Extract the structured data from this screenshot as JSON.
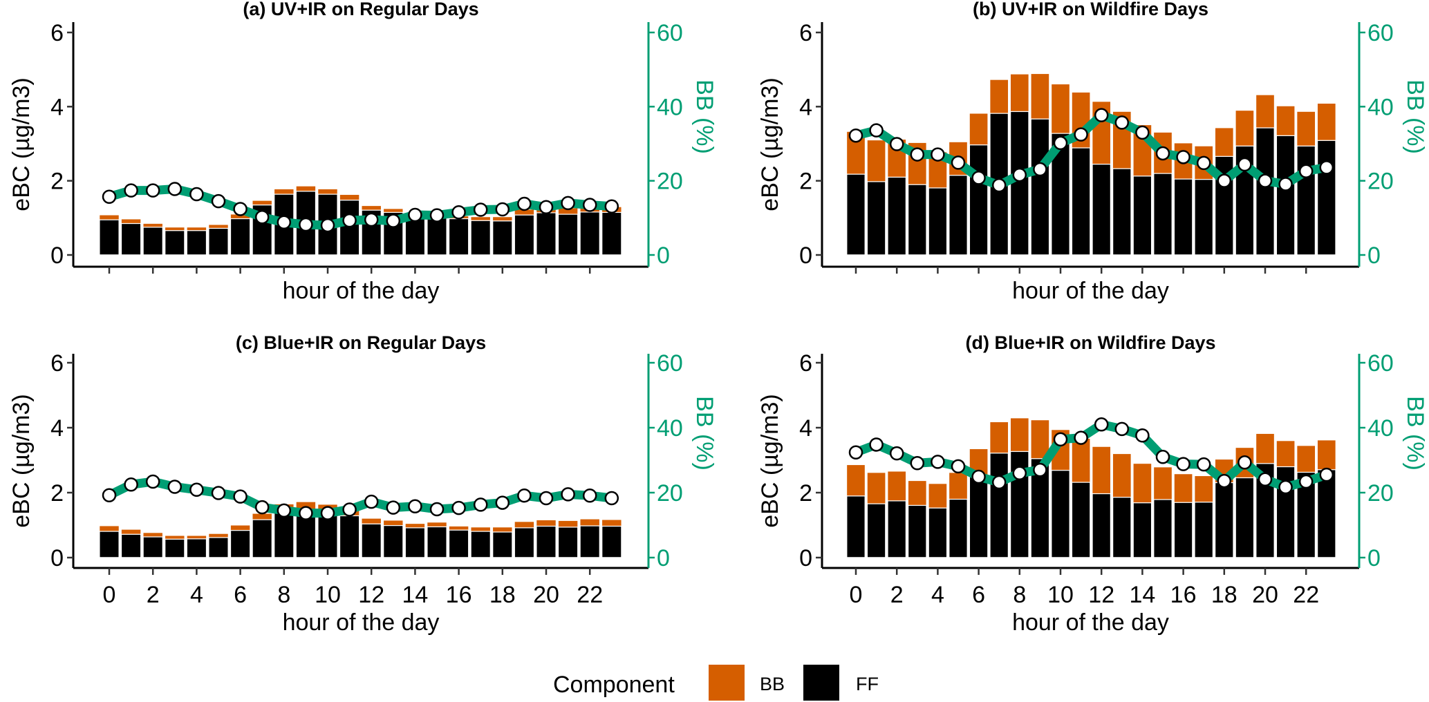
{
  "colors": {
    "BB": "#D55E00",
    "FF": "#000000",
    "line": "#009E73",
    "point_fill": "#ffffff"
  },
  "legend": {
    "title": "Component",
    "items": [
      {
        "key": "BB",
        "label": "BB"
      },
      {
        "key": "FF",
        "label": "FF"
      }
    ],
    "position": "bottom"
  },
  "chart_data": [
    {
      "type": "bar",
      "stacked": true,
      "title": "(a) UV+IR on Regular Days",
      "xlabel": "hour of the day",
      "ylabel": "eBC (µg/m3)",
      "ylabel_right": "BB (%)",
      "ylim": [
        0,
        6
      ],
      "yticks": [
        0,
        2,
        4,
        6
      ],
      "ylim_right": [
        0,
        60
      ],
      "yticks_right": [
        0,
        20,
        40,
        60
      ],
      "x": [
        0,
        1,
        2,
        3,
        4,
        5,
        6,
        7,
        8,
        9,
        10,
        11,
        12,
        13,
        14,
        15,
        16,
        17,
        18,
        19,
        20,
        21,
        22,
        23
      ],
      "xticks": [
        0,
        2,
        4,
        6,
        8,
        10,
        12,
        14,
        16,
        18,
        20,
        22
      ],
      "show_xtick_labels": false,
      "series": [
        {
          "name": "FF",
          "type": "bar",
          "values": [
            0.95,
            0.85,
            0.75,
            0.66,
            0.66,
            0.72,
            0.98,
            1.35,
            1.64,
            1.72,
            1.64,
            1.48,
            1.21,
            1.15,
            1.04,
            1.04,
            0.98,
            0.93,
            0.92,
            1.08,
            1.14,
            1.1,
            1.16,
            1.15
          ]
        },
        {
          "name": "BB",
          "type": "bar",
          "values": [
            0.13,
            0.12,
            0.1,
            0.09,
            0.09,
            0.1,
            0.12,
            0.12,
            0.14,
            0.14,
            0.14,
            0.15,
            0.12,
            0.1,
            0.08,
            0.06,
            0.07,
            0.1,
            0.11,
            0.15,
            0.11,
            0.17,
            0.11,
            0.15
          ]
        },
        {
          "name": "BB (%)",
          "type": "line",
          "axis": "right",
          "values": [
            15.7,
            17.4,
            17.4,
            17.8,
            16.4,
            14.5,
            12.4,
            10.2,
            8.8,
            8.2,
            8.0,
            9.3,
            9.5,
            9.2,
            10.8,
            10.7,
            11.5,
            12.2,
            12.3,
            13.8,
            12.9,
            14.0,
            13.5,
            13.1
          ]
        }
      ]
    },
    {
      "type": "bar",
      "stacked": true,
      "title": "(b) UV+IR on Wildfire Days",
      "xlabel": "hour of the day",
      "ylabel": "eBC (µg/m3)",
      "ylabel_right": "BB (%)",
      "ylim": [
        0,
        6
      ],
      "yticks": [
        0,
        2,
        4,
        6
      ],
      "ylim_right": [
        0,
        60
      ],
      "yticks_right": [
        0,
        20,
        40,
        60
      ],
      "x": [
        0,
        1,
        2,
        3,
        4,
        5,
        6,
        7,
        8,
        9,
        10,
        11,
        12,
        13,
        14,
        15,
        16,
        17,
        18,
        19,
        20,
        21,
        22,
        23
      ],
      "xticks": [
        0,
        2,
        4,
        6,
        8,
        10,
        12,
        14,
        16,
        18,
        20,
        22
      ],
      "show_xtick_labels": false,
      "series": [
        {
          "name": "FF",
          "type": "bar",
          "values": [
            2.18,
            1.98,
            2.1,
            1.9,
            1.81,
            2.15,
            2.97,
            3.82,
            3.87,
            3.67,
            3.28,
            2.89,
            2.45,
            2.33,
            2.13,
            2.2,
            2.05,
            2.04,
            2.66,
            2.94,
            3.43,
            3.22,
            2.94,
            3.09
          ]
        },
        {
          "name": "BB",
          "type": "bar",
          "values": [
            1.15,
            1.12,
            1.02,
            1.13,
            0.97,
            0.9,
            0.85,
            0.91,
            1.01,
            1.22,
            1.33,
            1.5,
            1.69,
            1.54,
            1.38,
            1.11,
            0.97,
            0.9,
            0.77,
            0.96,
            0.89,
            0.8,
            0.93,
            1.0
          ]
        },
        {
          "name": "BB (%)",
          "type": "line",
          "axis": "right",
          "values": [
            32.2,
            33.6,
            29.9,
            27.1,
            27.1,
            24.9,
            20.8,
            18.8,
            21.6,
            23.1,
            30.2,
            32.5,
            37.7,
            35.7,
            33.0,
            27.4,
            26.4,
            24.8,
            20.0,
            24.4,
            20.0,
            19.1,
            22.6,
            23.6
          ]
        }
      ]
    },
    {
      "type": "bar",
      "stacked": true,
      "title": "(c) Blue+IR on Regular Days",
      "xlabel": "hour of the day",
      "ylabel": "eBC (µg/m3)",
      "ylabel_right": "BB (%)",
      "ylim": [
        0,
        6
      ],
      "yticks": [
        0,
        2,
        4,
        6
      ],
      "ylim_right": [
        0,
        60
      ],
      "yticks_right": [
        0,
        20,
        40,
        60
      ],
      "x": [
        0,
        1,
        2,
        3,
        4,
        5,
        6,
        7,
        8,
        9,
        10,
        11,
        12,
        13,
        14,
        15,
        16,
        17,
        18,
        19,
        20,
        21,
        22,
        23
      ],
      "xticks": [
        0,
        2,
        4,
        6,
        8,
        10,
        12,
        14,
        16,
        18,
        20,
        22
      ],
      "show_xtick_labels": true,
      "series": [
        {
          "name": "FF",
          "type": "bar",
          "values": [
            0.81,
            0.72,
            0.64,
            0.57,
            0.58,
            0.62,
            0.84,
            1.17,
            1.43,
            1.47,
            1.47,
            1.29,
            1.04,
            0.99,
            0.92,
            0.95,
            0.85,
            0.81,
            0.79,
            0.92,
            0.97,
            0.94,
            0.98,
            0.97
          ]
        },
        {
          "name": "BB",
          "type": "bar",
          "values": [
            0.17,
            0.15,
            0.13,
            0.11,
            0.1,
            0.12,
            0.16,
            0.19,
            0.22,
            0.25,
            0.17,
            0.21,
            0.17,
            0.16,
            0.13,
            0.14,
            0.12,
            0.13,
            0.15,
            0.19,
            0.19,
            0.2,
            0.21,
            0.2
          ]
        },
        {
          "name": "BB (%)",
          "type": "line",
          "axis": "right",
          "values": [
            19.2,
            22.5,
            23.4,
            21.8,
            20.9,
            19.9,
            18.8,
            15.5,
            14.5,
            13.7,
            13.7,
            14.8,
            17.2,
            15.4,
            15.8,
            14.9,
            15.3,
            16.3,
            16.9,
            19.1,
            18.3,
            19.5,
            19.1,
            18.3
          ]
        }
      ]
    },
    {
      "type": "bar",
      "stacked": true,
      "title": "(d) Blue+IR on Wildfire Days",
      "xlabel": "hour of the day",
      "ylabel": "eBC (µg/m3)",
      "ylabel_right": "BB (%)",
      "ylim": [
        0,
        6
      ],
      "yticks": [
        0,
        2,
        4,
        6
      ],
      "ylim_right": [
        0,
        60
      ],
      "yticks_right": [
        0,
        20,
        40,
        60
      ],
      "x": [
        0,
        1,
        2,
        3,
        4,
        5,
        6,
        7,
        8,
        9,
        10,
        11,
        12,
        13,
        14,
        15,
        16,
        17,
        18,
        19,
        20,
        21,
        22,
        23
      ],
      "xticks": [
        0,
        2,
        4,
        6,
        8,
        10,
        12,
        14,
        16,
        18,
        20,
        22
      ],
      "show_xtick_labels": true,
      "series": [
        {
          "name": "FF",
          "type": "bar",
          "values": [
            1.9,
            1.66,
            1.75,
            1.61,
            1.53,
            1.8,
            2.5,
            3.22,
            3.27,
            3.05,
            2.69,
            2.32,
            1.97,
            1.86,
            1.69,
            1.79,
            1.7,
            1.71,
            2.31,
            2.46,
            2.9,
            2.8,
            2.63,
            2.71
          ]
        },
        {
          "name": "BB",
          "type": "bar",
          "values": [
            0.96,
            0.96,
            0.91,
            0.76,
            0.75,
            0.82,
            0.85,
            0.96,
            1.03,
            1.19,
            1.25,
            1.35,
            1.45,
            1.34,
            1.21,
            1.0,
            0.88,
            0.81,
            0.72,
            0.93,
            0.92,
            0.8,
            0.82,
            0.91
          ]
        },
        {
          "name": "BB (%)",
          "type": "line",
          "axis": "right",
          "values": [
            32.4,
            34.8,
            32.1,
            29.1,
            29.5,
            28.1,
            24.9,
            23.2,
            26.0,
            27.0,
            36.4,
            36.9,
            41.0,
            39.6,
            37.6,
            31.0,
            28.8,
            28.7,
            23.6,
            29.3,
            24.1,
            21.7,
            23.4,
            25.5
          ]
        }
      ]
    }
  ]
}
